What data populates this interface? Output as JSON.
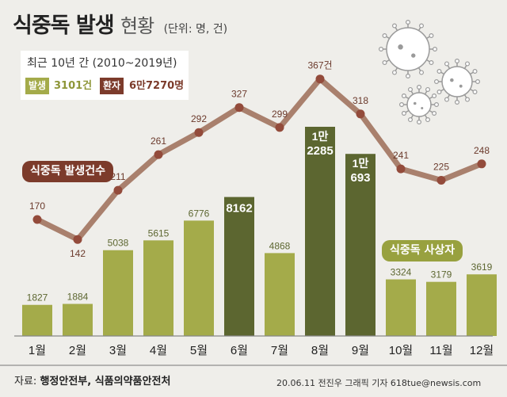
{
  "title": {
    "main": "식중독 발생",
    "sub": "현황",
    "unit": "(단위: 명, 건)"
  },
  "info": {
    "period": "최근 10년 간 (2010~2019년)",
    "cases_label": "발생",
    "cases_total": "3101건",
    "patients_label": "환자",
    "patients_total": "6만7270명"
  },
  "labels": {
    "line_series": "식중독 발생건수",
    "bar_series": "식중독 사상자"
  },
  "footer": {
    "source_prefix": "자료:",
    "source": "행정안전부, 식품의약품안전처",
    "credit": "20.06.11 전진우 그래픽 기자 618tue@newsis.com"
  },
  "colors": {
    "bar": "#a4ab4a",
    "bar_dark": "#5c6630",
    "line": "#a9806d",
    "marker": "#934b3b",
    "tag_line": "#7c3b2b",
    "tag_bar": "#98a13f"
  },
  "chart_data": {
    "type": "bar",
    "title": "식중독 발생 현황",
    "categories": [
      "1월",
      "2월",
      "3월",
      "4월",
      "5월",
      "6월",
      "7월",
      "8월",
      "9월",
      "10월",
      "11월",
      "12월"
    ],
    "series": [
      {
        "name": "식중독 사상자",
        "type": "bar",
        "values": [
          1827,
          1884,
          5038,
          5615,
          6776,
          8162,
          4868,
          12285,
          10693,
          3324,
          3179,
          3619
        ],
        "labels": [
          "1827",
          "1884",
          "5038",
          "5615",
          "6776",
          "8162",
          "4868",
          "1만\n2285",
          "1만\n693",
          "3324",
          "3179",
          "3619"
        ]
      },
      {
        "name": "식중독 발생건수",
        "type": "line",
        "values": [
          170,
          142,
          211,
          261,
          292,
          327,
          299,
          367,
          318,
          241,
          225,
          248
        ],
        "labels": [
          "170",
          "142",
          "211",
          "261",
          "292",
          "327",
          "299",
          "367건",
          "318",
          "241",
          "225",
          "248"
        ]
      }
    ],
    "highlighted": [
      "6월",
      "8월",
      "9월"
    ],
    "xlabel": "",
    "ylabel": "",
    "legend": "none"
  }
}
